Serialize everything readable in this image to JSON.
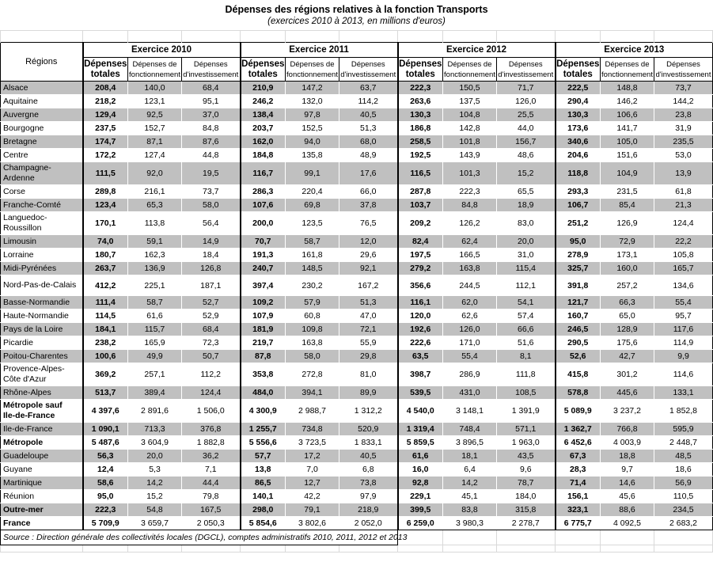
{
  "title": "Dépenses des régions relatives à la fonction Transports",
  "subtitle": "(exercices 2010 à 2013, en millions d'euros)",
  "source": "Source : Direction générale des collectivités locales (DGCL), comptes administratifs 2010, 2011, 2012 et 2013",
  "colors": {
    "shaded_row": "#c0c0c0",
    "border": "#000000",
    "grid_light": "#d9d9d9"
  },
  "table": {
    "regions_header": "Régions",
    "year_headers": [
      "Exercice 2010",
      "Exercice 2011",
      "Exercice 2012",
      "Exercice 2013"
    ],
    "sub_headers": {
      "total": "Dépenses\ntotales",
      "fonctionnement": "Dépenses de\nfonctionnement",
      "investissement": "Dépenses\nd'investissement"
    },
    "rows": [
      {
        "region": "Alsace",
        "values": [
          "208,4",
          "140,0",
          "68,4",
          "210,9",
          "147,2",
          "63,7",
          "222,3",
          "150,5",
          "71,7",
          "222,5",
          "148,8",
          "73,7"
        ]
      },
      {
        "region": "Aquitaine",
        "values": [
          "218,2",
          "123,1",
          "95,1",
          "246,2",
          "132,0",
          "114,2",
          "263,6",
          "137,5",
          "126,0",
          "290,4",
          "146,2",
          "144,2"
        ]
      },
      {
        "region": "Auvergne",
        "values": [
          "129,4",
          "92,5",
          "37,0",
          "138,4",
          "97,8",
          "40,5",
          "130,3",
          "104,8",
          "25,5",
          "130,3",
          "106,6",
          "23,8"
        ]
      },
      {
        "region": "Bourgogne",
        "values": [
          "237,5",
          "152,7",
          "84,8",
          "203,7",
          "152,5",
          "51,3",
          "186,8",
          "142,8",
          "44,0",
          "173,6",
          "141,7",
          "31,9"
        ]
      },
      {
        "region": "Bretagne",
        "values": [
          "174,7",
          "87,1",
          "87,6",
          "162,0",
          "94,0",
          "68,0",
          "258,5",
          "101,8",
          "156,7",
          "340,6",
          "105,0",
          "235,5"
        ]
      },
      {
        "region": "Centre",
        "values": [
          "172,2",
          "127,4",
          "44,8",
          "184,8",
          "135,8",
          "48,9",
          "192,5",
          "143,9",
          "48,6",
          "204,6",
          "151,6",
          "53,0"
        ]
      },
      {
        "region": "Champagne-\nArdenne",
        "values": [
          "111,5",
          "92,0",
          "19,5",
          "116,7",
          "99,1",
          "17,6",
          "116,5",
          "101,3",
          "15,2",
          "118,8",
          "104,9",
          "13,9"
        ]
      },
      {
        "region": "Corse",
        "values": [
          "289,8",
          "216,1",
          "73,7",
          "286,3",
          "220,4",
          "66,0",
          "287,8",
          "222,3",
          "65,5",
          "293,3",
          "231,5",
          "61,8"
        ]
      },
      {
        "region": "Franche-Comté",
        "values": [
          "123,4",
          "65,3",
          "58,0",
          "107,6",
          "69,8",
          "37,8",
          "103,7",
          "84,8",
          "18,9",
          "106,7",
          "85,4",
          "21,3"
        ]
      },
      {
        "region": "Languedoc-\nRoussillon",
        "values": [
          "170,1",
          "113,8",
          "56,4",
          "200,0",
          "123,5",
          "76,5",
          "209,2",
          "126,2",
          "83,0",
          "251,2",
          "126,9",
          "124,4"
        ]
      },
      {
        "region": "Limousin",
        "values": [
          "74,0",
          "59,1",
          "14,9",
          "70,7",
          "58,7",
          "12,0",
          "82,4",
          "62,4",
          "20,0",
          "95,0",
          "72,9",
          "22,2"
        ]
      },
      {
        "region": "Lorraine",
        "values": [
          "180,7",
          "162,3",
          "18,4",
          "191,3",
          "161,8",
          "29,6",
          "197,5",
          "166,5",
          "31,0",
          "278,9",
          "173,1",
          "105,8"
        ]
      },
      {
        "region": "Midi-Pyrénées",
        "values": [
          "263,7",
          "136,9",
          "126,8",
          "240,7",
          "148,5",
          "92,1",
          "279,2",
          "163,8",
          "115,4",
          "325,7",
          "160,0",
          "165,7"
        ]
      },
      {
        "region": "Nord-Pas-de-Calais",
        "tall": true,
        "values": [
          "412,2",
          "225,1",
          "187,1",
          "397,4",
          "230,2",
          "167,2",
          "356,6",
          "244,5",
          "112,1",
          "391,8",
          "257,2",
          "134,6"
        ]
      },
      {
        "region": "Basse-Normandie",
        "values": [
          "111,4",
          "58,7",
          "52,7",
          "109,2",
          "57,9",
          "51,3",
          "116,1",
          "62,0",
          "54,1",
          "121,7",
          "66,3",
          "55,4"
        ]
      },
      {
        "region": "Haute-Normandie",
        "values": [
          "114,5",
          "61,6",
          "52,9",
          "107,9",
          "60,8",
          "47,0",
          "120,0",
          "62,6",
          "57,4",
          "160,7",
          "65,0",
          "95,7"
        ]
      },
      {
        "region": "Pays de la Loire",
        "values": [
          "184,1",
          "115,7",
          "68,4",
          "181,9",
          "109,8",
          "72,1",
          "192,6",
          "126,0",
          "66,6",
          "246,5",
          "128,9",
          "117,6"
        ]
      },
      {
        "region": "Picardie",
        "values": [
          "238,2",
          "165,9",
          "72,3",
          "219,7",
          "163,8",
          "55,9",
          "222,6",
          "171,0",
          "51,6",
          "290,5",
          "175,6",
          "114,9"
        ]
      },
      {
        "region": "Poitou-Charentes",
        "values": [
          "100,6",
          "49,9",
          "50,7",
          "87,8",
          "58,0",
          "29,8",
          "63,5",
          "55,4",
          "8,1",
          "52,6",
          "42,7",
          "9,9"
        ]
      },
      {
        "region": "Provence-Alpes-\nCôte d'Azur",
        "values": [
          "369,2",
          "257,1",
          "112,2",
          "353,8",
          "272,8",
          "81,0",
          "398,7",
          "286,9",
          "111,8",
          "415,8",
          "301,2",
          "114,6"
        ]
      },
      {
        "region": "Rhône-Alpes",
        "values": [
          "513,7",
          "389,4",
          "124,4",
          "484,0",
          "394,1",
          "89,9",
          "539,5",
          "431,0",
          "108,5",
          "578,8",
          "445,6",
          "133,1"
        ]
      },
      {
        "region": "Métropole sauf\nIle-de-France",
        "bold": true,
        "values": [
          "4 397,6",
          "2 891,6",
          "1 506,0",
          "4 300,9",
          "2 988,7",
          "1 312,2",
          "4 540,0",
          "3 148,1",
          "1 391,9",
          "5 089,9",
          "3 237,2",
          "1 852,8"
        ]
      },
      {
        "region": "Ile-de-France",
        "values": [
          "1 090,1",
          "713,3",
          "376,8",
          "1 255,7",
          "734,8",
          "520,9",
          "1 319,4",
          "748,4",
          "571,1",
          "1 362,7",
          "766,8",
          "595,9"
        ]
      },
      {
        "region": "Métropole",
        "bold": true,
        "values": [
          "5 487,6",
          "3 604,9",
          "1 882,8",
          "5 556,6",
          "3 723,5",
          "1 833,1",
          "5 859,5",
          "3 896,5",
          "1 963,0",
          "6 452,6",
          "4 003,9",
          "2 448,7"
        ]
      },
      {
        "region": "Guadeloupe",
        "values": [
          "56,3",
          "20,0",
          "36,2",
          "57,7",
          "17,2",
          "40,5",
          "61,6",
          "18,1",
          "43,5",
          "67,3",
          "18,8",
          "48,5"
        ]
      },
      {
        "region": "Guyane",
        "values": [
          "12,4",
          "5,3",
          "7,1",
          "13,8",
          "7,0",
          "6,8",
          "16,0",
          "6,4",
          "9,6",
          "28,3",
          "9,7",
          "18,6"
        ]
      },
      {
        "region": "Martinique",
        "values": [
          "58,6",
          "14,2",
          "44,4",
          "86,5",
          "12,7",
          "73,8",
          "92,8",
          "14,2",
          "78,7",
          "71,4",
          "14,6",
          "56,9"
        ]
      },
      {
        "region": "Réunion",
        "values": [
          "95,0",
          "15,2",
          "79,8",
          "140,1",
          "42,2",
          "97,9",
          "229,1",
          "45,1",
          "184,0",
          "156,1",
          "45,6",
          "110,5"
        ]
      },
      {
        "region": "Outre-mer",
        "bold": true,
        "values": [
          "222,3",
          "54,8",
          "167,5",
          "298,0",
          "79,1",
          "218,9",
          "399,5",
          "83,8",
          "315,8",
          "323,1",
          "88,6",
          "234,5"
        ]
      },
      {
        "region": "France",
        "bold": true,
        "values": [
          "5 709,9",
          "3 659,7",
          "2 050,3",
          "5 854,6",
          "3 802,6",
          "2 052,0",
          "6 259,0",
          "3 980,3",
          "2 278,7",
          "6 775,7",
          "4 092,5",
          "2 683,2"
        ]
      }
    ]
  }
}
